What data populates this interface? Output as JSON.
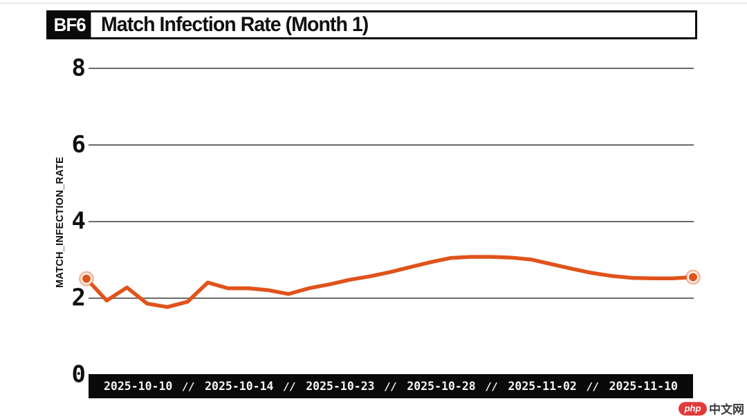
{
  "page": {
    "background": "#ffffff",
    "top_hairline_color": "#d4d4d4"
  },
  "header": {
    "badge": "BF6",
    "title": "Match Infection Rate (Month 1)"
  },
  "watermark": {
    "logo_text": "php",
    "site_text": "中文网",
    "logo_color": "#e03b3a"
  },
  "chart_data": {
    "type": "line",
    "title": "BF6 Match Infection Rate (Month 1)",
    "xlabel": "",
    "ylabel": "MATCH_INFECTION_RATE",
    "x_tick_labels": [
      "2025-10-10",
      "2025-10-14",
      "2025-10-23",
      "2025-10-28",
      "2025-11-02",
      "2025-11-10"
    ],
    "x_tick_separator": "//",
    "y_ticks": [
      0,
      2,
      4,
      6,
      8
    ],
    "ylim": [
      0,
      8
    ],
    "grid": "horizontal-only",
    "legend_position": "none",
    "line_color": "#e0531b",
    "marker_style": "circled-endpoints",
    "axis_bar_color": "#0a0a0a",
    "grid_color": "#6a6a6a",
    "points_evenly_spaced": true,
    "values": [
      2.5,
      1.93,
      2.27,
      1.85,
      1.76,
      1.9,
      2.4,
      2.25,
      2.25,
      2.2,
      2.1,
      2.25,
      2.35,
      2.47,
      2.56,
      2.67,
      2.8,
      2.93,
      3.04,
      3.07,
      3.07,
      3.05,
      3.0,
      2.88,
      2.76,
      2.65,
      2.57,
      2.52,
      2.51,
      2.51,
      2.54
    ]
  }
}
